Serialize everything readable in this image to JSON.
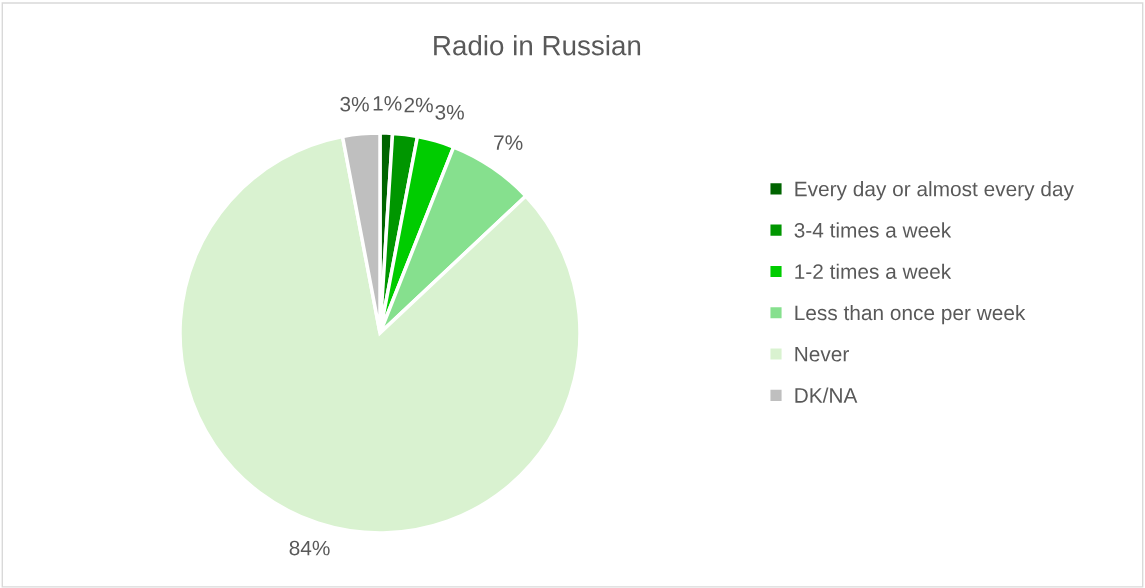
{
  "chart_data": {
    "type": "pie",
    "title": "Radio in Russian",
    "categories": [
      "Every day or almost every day",
      "3-4 times a week",
      "1-2 times a week",
      "Less than once per week",
      "Never",
      "DK/NA"
    ],
    "values": [
      1,
      2,
      3,
      7,
      84,
      3
    ],
    "colors": [
      "#006400",
      "#009600",
      "#00cc00",
      "#86e08e",
      "#d9f2d0",
      "#bfbfbf"
    ],
    "value_labels": [
      "1%",
      "2%",
      "3%",
      "7%",
      "84%",
      "3%"
    ],
    "legend": "right"
  }
}
